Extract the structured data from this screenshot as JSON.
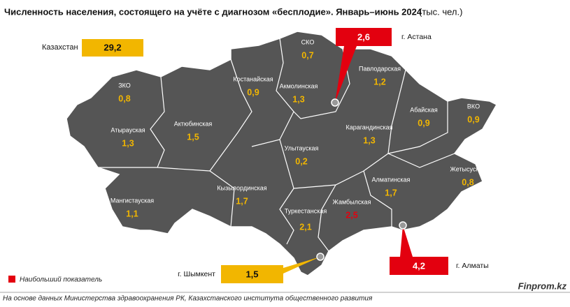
{
  "header": {
    "title": "Численность населения, состоящего на учёте с диагнозом «бесплодие». Январь–июнь 2024",
    "unit": "(тыс. чел.)"
  },
  "colors": {
    "map": "#555555",
    "value": "#f2b600",
    "highlight": "#e3000f"
  },
  "total": {
    "name": "Казахстан",
    "value": "29,2"
  },
  "regions": [
    {
      "name": "СКО",
      "value": "0,7"
    },
    {
      "name": "Павлодарская",
      "value": "1,2"
    },
    {
      "name": "Костанайская",
      "value": "0,9"
    },
    {
      "name": "Акмолинская",
      "value": "1,3"
    },
    {
      "name": "ЗКО",
      "value": "0,8"
    },
    {
      "name": "Абайская",
      "value": "0,9"
    },
    {
      "name": "ВКО",
      "value": "0,9"
    },
    {
      "name": "Актюбинская",
      "value": "1,5"
    },
    {
      "name": "Атырауская",
      "value": "1,3"
    },
    {
      "name": "Карагандинская",
      "value": "1,3"
    },
    {
      "name": "Улытауская",
      "value": "0,2"
    },
    {
      "name": "Жетысуская",
      "value": "0,8"
    },
    {
      "name": "Алматинская",
      "value": "1,7"
    },
    {
      "name": "Кызылординская",
      "value": "1,7"
    },
    {
      "name": "Мангистауская",
      "value": "1,1"
    },
    {
      "name": "Жамбылская",
      "value": "2,5",
      "highlight": true
    },
    {
      "name": "Туркестанская",
      "value": "2,1"
    }
  ],
  "cities": [
    {
      "name": "г. Астана",
      "value": "2,6",
      "highlight": true
    },
    {
      "name": "г. Алматы",
      "value": "4,2",
      "highlight": true
    },
    {
      "name": "г. Шымкент",
      "value": "1,5"
    }
  ],
  "legend": {
    "label": "Наибольший показатель"
  },
  "footer": {
    "source": "На основе данных Министерства здравоохранения РК, Казахстанского института общественного развития",
    "brand": "Finprom.kz"
  }
}
